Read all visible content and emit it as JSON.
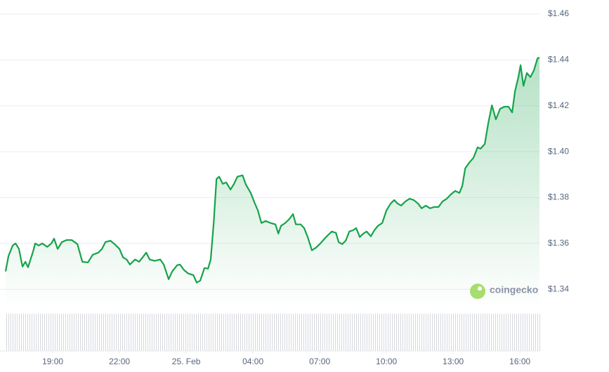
{
  "chart_data": {
    "type": "line",
    "x": [
      16.88,
      17.01,
      17.2,
      17.33,
      17.48,
      17.64,
      17.77,
      17.89,
      18.12,
      18.21,
      18.37,
      18.53,
      18.75,
      18.94,
      19.06,
      19.22,
      19.41,
      19.63,
      19.85,
      20.11,
      20.33,
      20.58,
      20.8,
      21.05,
      21.21,
      21.37,
      21.59,
      21.78,
      22.0,
      22.16,
      22.32,
      22.47,
      22.7,
      22.88,
      23.04,
      23.2,
      23.36,
      23.58,
      23.83,
      23.99,
      24.21,
      24.37,
      24.59,
      24.72,
      24.9,
      25.09,
      25.32,
      25.47,
      25.63,
      25.82,
      25.98,
      26.1,
      26.23,
      26.36,
      26.48,
      26.64,
      26.8,
      26.99,
      27.15,
      27.3,
      27.53,
      27.68,
      27.9,
      28.06,
      28.22,
      28.38,
      28.57,
      28.79,
      29.01,
      29.14,
      29.26,
      29.45,
      29.64,
      29.8,
      29.93,
      30.15,
      30.3,
      30.46,
      30.65,
      30.84,
      31.03,
      31.22,
      31.38,
      31.54,
      31.73,
      31.85,
      32.01,
      32.17,
      32.33,
      32.51,
      32.64,
      32.8,
      32.96,
      33.11,
      33.3,
      33.46,
      33.62,
      33.81,
      34.0,
      34.19,
      34.35,
      34.5,
      34.66,
      34.85,
      35.04,
      35.23,
      35.42,
      35.58,
      35.77,
      35.96,
      36.15,
      36.34,
      36.52,
      36.71,
      36.9,
      37.09,
      37.28,
      37.41,
      37.54,
      37.72,
      37.91,
      38.1,
      38.23,
      38.42,
      38.58,
      38.74,
      38.92,
      39.11,
      39.3,
      39.49,
      39.65,
      39.78,
      39.93,
      40.03,
      40.16,
      40.31,
      40.47,
      40.63,
      40.79,
      40.88
    ],
    "values": [
      1.3478,
      1.3545,
      1.3591,
      1.36,
      1.3576,
      1.3499,
      1.352,
      1.3496,
      1.3566,
      1.36,
      1.3591,
      1.36,
      1.3585,
      1.36,
      1.3621,
      1.3576,
      1.3606,
      1.3615,
      1.3615,
      1.3597,
      1.352,
      1.3517,
      1.3551,
      1.356,
      1.3576,
      1.3606,
      1.3612,
      1.3597,
      1.3576,
      1.3539,
      1.353,
      1.3508,
      1.353,
      1.352,
      1.3539,
      1.356,
      1.353,
      1.3524,
      1.353,
      1.3508,
      1.3444,
      1.3478,
      1.3505,
      1.3508,
      1.3484,
      1.3469,
      1.3462,
      1.3429,
      1.3438,
      1.3493,
      1.349,
      1.353,
      1.3683,
      1.3881,
      1.3891,
      1.386,
      1.3866,
      1.3835,
      1.386,
      1.3891,
      1.3897,
      1.3857,
      1.382,
      1.378,
      1.3744,
      1.3689,
      1.3698,
      1.3689,
      1.3683,
      1.3643,
      1.3677,
      1.3689,
      1.3707,
      1.3728,
      1.3683,
      1.3683,
      1.3667,
      1.3628,
      1.357,
      1.3582,
      1.36,
      1.3621,
      1.3637,
      1.3652,
      1.3646,
      1.3606,
      1.3597,
      1.3612,
      1.3652,
      1.3658,
      1.3667,
      1.3628,
      1.3643,
      1.3652,
      1.3631,
      1.3658,
      1.3677,
      1.3689,
      1.3744,
      1.3774,
      1.3789,
      1.3774,
      1.3765,
      1.3783,
      1.3795,
      1.3789,
      1.3774,
      1.3753,
      1.3765,
      1.3753,
      1.3759,
      1.3759,
      1.3783,
      1.3795,
      1.3814,
      1.3829,
      1.382,
      1.3851,
      1.3927,
      1.3952,
      1.3973,
      1.4019,
      1.4013,
      1.4034,
      1.4126,
      1.4202,
      1.4141,
      1.4187,
      1.4196,
      1.4196,
      1.4171,
      1.4264,
      1.4325,
      1.4377,
      1.4287,
      1.4343,
      1.4325,
      1.4355,
      1.4407,
      1.441
    ],
    "color": "#16a34a",
    "xlim": [
      16.85,
      40.9
    ],
    "xticks": [
      {
        "value": 19,
        "label": "19:00"
      },
      {
        "value": 22,
        "label": "22:00"
      },
      {
        "value": 25,
        "label": "25. Feb"
      },
      {
        "value": 28,
        "label": "04:00"
      },
      {
        "value": 31,
        "label": "07:00"
      },
      {
        "value": 34,
        "label": "10:00"
      },
      {
        "value": 37,
        "label": "13:00"
      },
      {
        "value": 40,
        "label": "16:00"
      }
    ],
    "ylim": [
      1.3318,
      1.46
    ],
    "yticks": [
      {
        "value": 1.34,
        "label": "$1.34"
      },
      {
        "value": 1.36,
        "label": "$1.36"
      },
      {
        "value": 1.38,
        "label": "$1.38"
      },
      {
        "value": 1.4,
        "label": "$1.40"
      },
      {
        "value": 1.42,
        "label": "$1.42"
      },
      {
        "value": 1.44,
        "label": "$1.44"
      },
      {
        "value": 1.46,
        "label": "$1.46"
      }
    ],
    "grid": true,
    "watermark": "coingecko"
  }
}
